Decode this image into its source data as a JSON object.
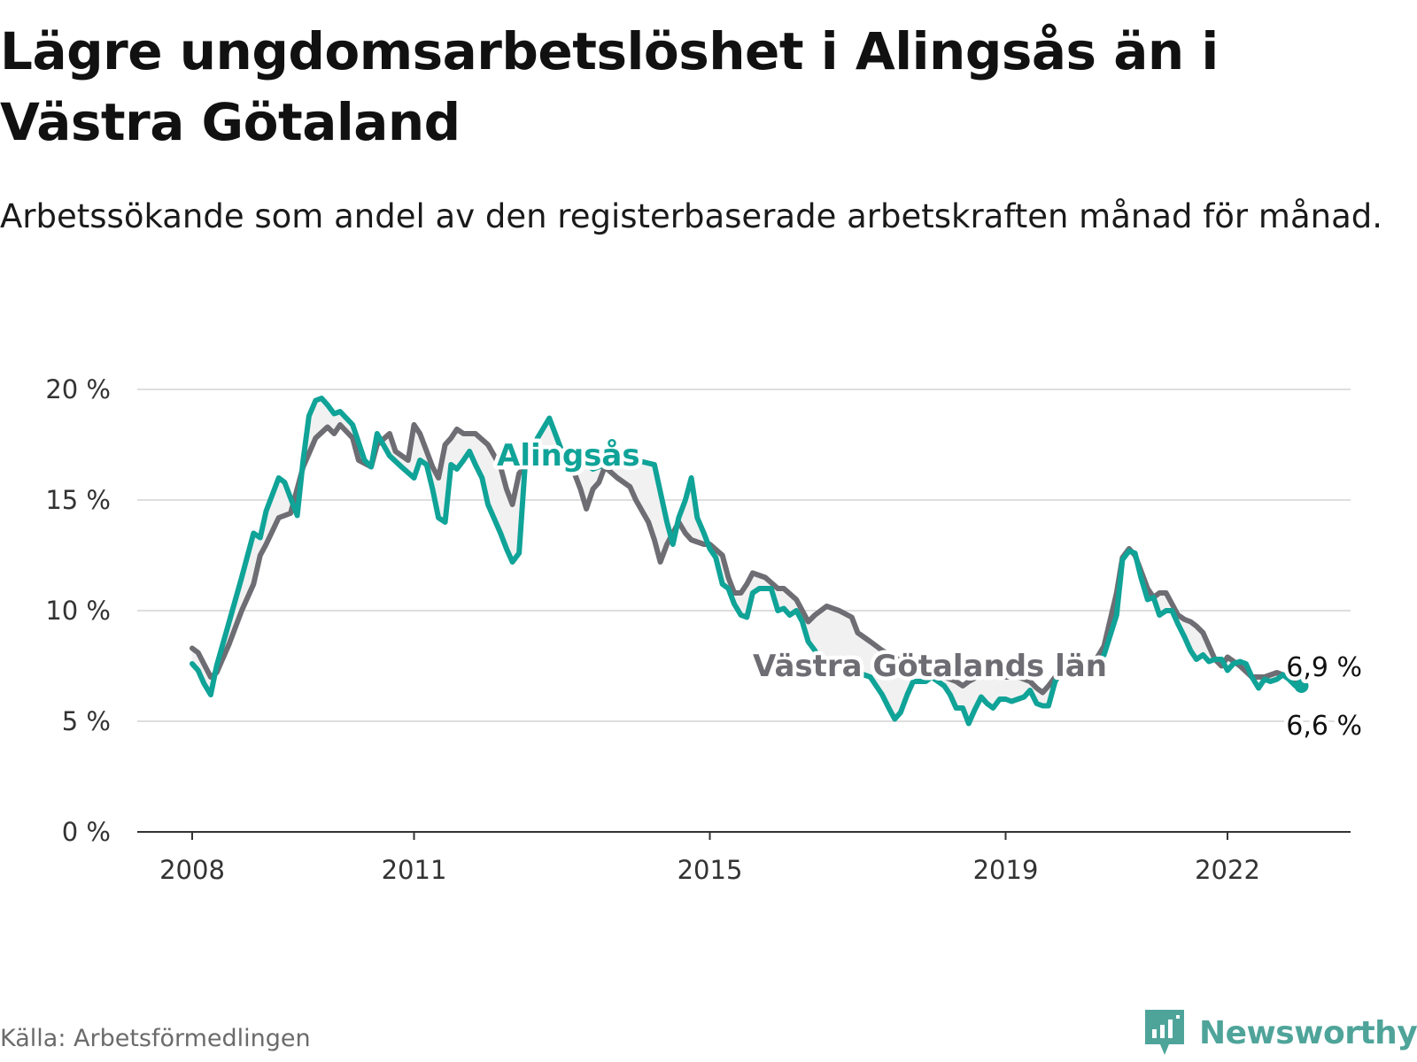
{
  "title": "Lägre ungdomsarbetslöshet i Alingsås än i Västra Götaland",
  "subtitle": "Arbetssökande som andel av den registerbaserade arbetskraften månad för månad.",
  "source": "Källa: Arbetsförmedlingen",
  "brand": {
    "name": "Newsworthy",
    "icon": "newsworthy-logo-icon",
    "color": "#4fa49a"
  },
  "colors": {
    "alingsas": "#10a398",
    "vastra": "#6e6d73",
    "grid": "#dedede",
    "axis": "#333333",
    "text": "#1a1a1a"
  },
  "chart_data": {
    "type": "line",
    "title": "Lägre ungdomsarbetslöshet i Alingsås än i Västra Götaland",
    "xlabel": "",
    "ylabel": "",
    "xlim": [
      2008.0,
      2023.0
    ],
    "ylim": [
      0,
      20
    ],
    "y_ticks": [
      0,
      5,
      10,
      15,
      20
    ],
    "y_tick_labels": [
      "0 %",
      "5 %",
      "10 %",
      "15 %",
      "20 %"
    ],
    "x_ticks": [
      2008,
      2011,
      2015,
      2019,
      2022
    ],
    "x_tick_labels": [
      "2008",
      "2011",
      "2015",
      "2019",
      "2022"
    ],
    "grid": true,
    "legend": "inline labels",
    "series": [
      {
        "name": "Alingsås",
        "label": "Alingsås",
        "color": "#10a398",
        "end_label": "6,6 %",
        "points": [
          [
            2008.0,
            7.6
          ],
          [
            2008.08,
            7.3
          ],
          [
            2008.16,
            6.7
          ],
          [
            2008.25,
            6.2
          ],
          [
            2008.33,
            7.5
          ],
          [
            2008.5,
            9.5
          ],
          [
            2008.67,
            11.5
          ],
          [
            2008.83,
            13.5
          ],
          [
            2008.92,
            13.3
          ],
          [
            2009.0,
            14.5
          ],
          [
            2009.17,
            16.0
          ],
          [
            2009.25,
            15.8
          ],
          [
            2009.42,
            14.3
          ],
          [
            2009.5,
            16.8
          ],
          [
            2009.58,
            18.8
          ],
          [
            2009.67,
            19.5
          ],
          [
            2009.75,
            19.6
          ],
          [
            2009.83,
            19.3
          ],
          [
            2009.92,
            18.9
          ],
          [
            2010.0,
            19.0
          ],
          [
            2010.17,
            18.4
          ],
          [
            2010.33,
            16.8
          ],
          [
            2010.42,
            16.5
          ],
          [
            2010.5,
            18.0
          ],
          [
            2010.67,
            17.0
          ],
          [
            2010.83,
            16.5
          ],
          [
            2011.0,
            16.0
          ],
          [
            2011.08,
            16.8
          ],
          [
            2011.17,
            16.6
          ],
          [
            2011.25,
            15.5
          ],
          [
            2011.33,
            14.2
          ],
          [
            2011.42,
            14.0
          ],
          [
            2011.5,
            16.6
          ],
          [
            2011.58,
            16.4
          ],
          [
            2011.67,
            16.8
          ],
          [
            2011.75,
            17.2
          ],
          [
            2011.83,
            16.6
          ],
          [
            2011.92,
            16.0
          ],
          [
            2012.0,
            14.8
          ],
          [
            2012.17,
            13.5
          ],
          [
            2012.25,
            12.8
          ],
          [
            2012.33,
            12.2
          ],
          [
            2012.42,
            12.6
          ],
          [
            2012.5,
            16.5
          ],
          [
            2012.67,
            17.8
          ],
          [
            2012.83,
            18.7
          ],
          [
            2013.0,
            17.2
          ],
          [
            2013.25,
            16.8
          ],
          [
            2013.42,
            16.4
          ],
          [
            2013.58,
            16.6
          ],
          [
            2013.75,
            17.0
          ],
          [
            2014.0,
            16.8
          ],
          [
            2014.25,
            16.6
          ],
          [
            2014.42,
            14.0
          ],
          [
            2014.5,
            13.0
          ],
          [
            2014.58,
            14.2
          ],
          [
            2014.67,
            15.0
          ],
          [
            2014.75,
            16.0
          ],
          [
            2014.83,
            14.2
          ],
          [
            2014.92,
            13.5
          ],
          [
            2015.0,
            12.8
          ],
          [
            2015.08,
            12.4
          ],
          [
            2015.17,
            11.2
          ],
          [
            2015.25,
            11.0
          ],
          [
            2015.33,
            10.3
          ],
          [
            2015.42,
            9.8
          ],
          [
            2015.5,
            9.7
          ],
          [
            2015.58,
            10.8
          ],
          [
            2015.67,
            11.0
          ],
          [
            2015.83,
            11.0
          ],
          [
            2015.92,
            10.0
          ],
          [
            2016.0,
            10.1
          ],
          [
            2016.08,
            9.8
          ],
          [
            2016.17,
            10.0
          ],
          [
            2016.25,
            9.5
          ],
          [
            2016.33,
            8.6
          ],
          [
            2016.42,
            8.2
          ],
          [
            2016.5,
            7.6
          ],
          [
            2016.67,
            7.7
          ],
          [
            2016.83,
            7.5
          ],
          [
            2017.0,
            7.2
          ],
          [
            2017.17,
            7.0
          ],
          [
            2017.33,
            6.2
          ],
          [
            2017.42,
            5.6
          ],
          [
            2017.5,
            5.1
          ],
          [
            2017.58,
            5.4
          ],
          [
            2017.67,
            6.2
          ],
          [
            2017.75,
            6.8
          ],
          [
            2017.92,
            6.8
          ],
          [
            2018.0,
            7.0
          ],
          [
            2018.17,
            6.6
          ],
          [
            2018.25,
            6.2
          ],
          [
            2018.33,
            5.6
          ],
          [
            2018.42,
            5.6
          ],
          [
            2018.5,
            4.9
          ],
          [
            2018.58,
            5.5
          ],
          [
            2018.67,
            6.1
          ],
          [
            2018.75,
            5.8
          ],
          [
            2018.83,
            5.6
          ],
          [
            2018.92,
            6.0
          ],
          [
            2019.0,
            6.0
          ],
          [
            2019.08,
            5.9
          ],
          [
            2019.25,
            6.1
          ],
          [
            2019.33,
            6.4
          ],
          [
            2019.42,
            5.8
          ],
          [
            2019.5,
            5.7
          ],
          [
            2019.58,
            5.7
          ],
          [
            2019.67,
            6.8
          ],
          [
            2019.75,
            7.2
          ],
          [
            2019.83,
            7.3
          ],
          [
            2019.92,
            7.0
          ],
          [
            2020.0,
            7.1
          ],
          [
            2020.08,
            7.4
          ],
          [
            2020.17,
            7.4
          ],
          [
            2020.25,
            7.6
          ],
          [
            2020.33,
            8.0
          ],
          [
            2020.5,
            9.8
          ],
          [
            2020.58,
            12.3
          ],
          [
            2020.67,
            12.7
          ],
          [
            2020.75,
            12.6
          ],
          [
            2020.83,
            11.5
          ],
          [
            2020.92,
            10.5
          ],
          [
            2021.0,
            10.6
          ],
          [
            2021.08,
            9.8
          ],
          [
            2021.17,
            10.0
          ],
          [
            2021.25,
            10.0
          ],
          [
            2021.33,
            9.4
          ],
          [
            2021.42,
            8.8
          ],
          [
            2021.5,
            8.2
          ],
          [
            2021.58,
            7.8
          ],
          [
            2021.67,
            8.0
          ],
          [
            2021.75,
            7.7
          ],
          [
            2021.83,
            7.8
          ],
          [
            2021.92,
            7.8
          ],
          [
            2022.0,
            7.3
          ],
          [
            2022.08,
            7.6
          ],
          [
            2022.17,
            7.7
          ],
          [
            2022.25,
            7.6
          ],
          [
            2022.33,
            7.0
          ],
          [
            2022.42,
            6.5
          ],
          [
            2022.5,
            6.9
          ],
          [
            2022.58,
            6.8
          ],
          [
            2022.67,
            6.9
          ],
          [
            2022.75,
            7.1
          ],
          [
            2022.83,
            6.9
          ],
          [
            2022.92,
            6.6
          ],
          [
            2023.0,
            6.6
          ]
        ]
      },
      {
        "name": "Västra Götalands län",
        "label": "Västra Götalands län",
        "color": "#6e6d73",
        "end_label": "6,9 %",
        "points": [
          [
            2008.0,
            8.3
          ],
          [
            2008.08,
            8.1
          ],
          [
            2008.25,
            7.0
          ],
          [
            2008.33,
            7.2
          ],
          [
            2008.5,
            8.5
          ],
          [
            2008.67,
            10.0
          ],
          [
            2008.83,
            11.2
          ],
          [
            2008.92,
            12.5
          ],
          [
            2009.0,
            13.0
          ],
          [
            2009.17,
            14.2
          ],
          [
            2009.33,
            14.4
          ],
          [
            2009.5,
            16.5
          ],
          [
            2009.67,
            17.8
          ],
          [
            2009.83,
            18.3
          ],
          [
            2009.92,
            18.0
          ],
          [
            2010.0,
            18.4
          ],
          [
            2010.17,
            17.8
          ],
          [
            2010.25,
            16.8
          ],
          [
            2010.42,
            16.5
          ],
          [
            2010.5,
            17.5
          ],
          [
            2010.67,
            18.0
          ],
          [
            2010.75,
            17.2
          ],
          [
            2010.92,
            16.8
          ],
          [
            2011.0,
            18.4
          ],
          [
            2011.08,
            18.0
          ],
          [
            2011.25,
            16.5
          ],
          [
            2011.33,
            16.0
          ],
          [
            2011.42,
            17.5
          ],
          [
            2011.5,
            17.8
          ],
          [
            2011.58,
            18.2
          ],
          [
            2011.67,
            18.0
          ],
          [
            2011.83,
            18.0
          ],
          [
            2012.0,
            17.5
          ],
          [
            2012.17,
            16.5
          ],
          [
            2012.25,
            15.5
          ],
          [
            2012.33,
            14.8
          ],
          [
            2012.42,
            16.2
          ],
          [
            2012.5,
            16.5
          ],
          [
            2012.67,
            17.0
          ],
          [
            2013.0,
            16.8
          ],
          [
            2013.17,
            16.2
          ],
          [
            2013.25,
            15.5
          ],
          [
            2013.33,
            14.6
          ],
          [
            2013.42,
            15.5
          ],
          [
            2013.5,
            15.8
          ],
          [
            2013.58,
            16.5
          ],
          [
            2013.75,
            16.0
          ],
          [
            2013.92,
            15.6
          ],
          [
            2014.0,
            15.0
          ],
          [
            2014.17,
            14.0
          ],
          [
            2014.25,
            13.2
          ],
          [
            2014.33,
            12.2
          ],
          [
            2014.42,
            13.0
          ],
          [
            2014.58,
            14.0
          ],
          [
            2014.67,
            13.5
          ],
          [
            2014.75,
            13.2
          ],
          [
            2014.92,
            13.0
          ],
          [
            2015.0,
            13.0
          ],
          [
            2015.17,
            12.5
          ],
          [
            2015.25,
            11.5
          ],
          [
            2015.33,
            10.8
          ],
          [
            2015.42,
            10.8
          ],
          [
            2015.5,
            11.2
          ],
          [
            2015.58,
            11.7
          ],
          [
            2015.75,
            11.5
          ],
          [
            2015.92,
            11.0
          ],
          [
            2016.0,
            11.0
          ],
          [
            2016.17,
            10.5
          ],
          [
            2016.33,
            9.5
          ],
          [
            2016.42,
            9.8
          ],
          [
            2016.58,
            10.2
          ],
          [
            2016.75,
            10.0
          ],
          [
            2016.92,
            9.7
          ],
          [
            2017.0,
            9.0
          ],
          [
            2017.17,
            8.6
          ],
          [
            2017.33,
            8.2
          ],
          [
            2017.5,
            7.9
          ],
          [
            2017.67,
            7.6
          ],
          [
            2017.83,
            7.6
          ],
          [
            2018.0,
            7.4
          ],
          [
            2018.17,
            7.0
          ],
          [
            2018.33,
            6.8
          ],
          [
            2018.42,
            6.6
          ],
          [
            2018.5,
            6.8
          ],
          [
            2018.67,
            7.1
          ],
          [
            2018.83,
            7.2
          ],
          [
            2019.0,
            7.0
          ],
          [
            2019.17,
            7.0
          ],
          [
            2019.33,
            6.8
          ],
          [
            2019.42,
            6.5
          ],
          [
            2019.5,
            6.3
          ],
          [
            2019.58,
            6.6
          ],
          [
            2019.67,
            7.0
          ],
          [
            2019.83,
            7.2
          ],
          [
            2020.0,
            7.4
          ],
          [
            2020.17,
            7.5
          ],
          [
            2020.33,
            8.4
          ],
          [
            2020.5,
            10.8
          ],
          [
            2020.58,
            12.4
          ],
          [
            2020.67,
            12.8
          ],
          [
            2020.75,
            12.5
          ],
          [
            2020.83,
            11.8
          ],
          [
            2020.92,
            11.0
          ],
          [
            2021.0,
            10.6
          ],
          [
            2021.08,
            10.8
          ],
          [
            2021.17,
            10.8
          ],
          [
            2021.25,
            10.3
          ],
          [
            2021.33,
            9.8
          ],
          [
            2021.42,
            9.6
          ],
          [
            2021.5,
            9.5
          ],
          [
            2021.58,
            9.3
          ],
          [
            2021.67,
            9.0
          ],
          [
            2021.75,
            8.4
          ],
          [
            2021.83,
            7.8
          ],
          [
            2021.92,
            7.5
          ],
          [
            2022.0,
            7.9
          ],
          [
            2022.17,
            7.5
          ],
          [
            2022.33,
            7.0
          ],
          [
            2022.5,
            7.0
          ],
          [
            2022.67,
            7.2
          ],
          [
            2022.83,
            7.0
          ],
          [
            2022.92,
            6.9
          ],
          [
            2023.0,
            6.9
          ]
        ]
      }
    ]
  }
}
